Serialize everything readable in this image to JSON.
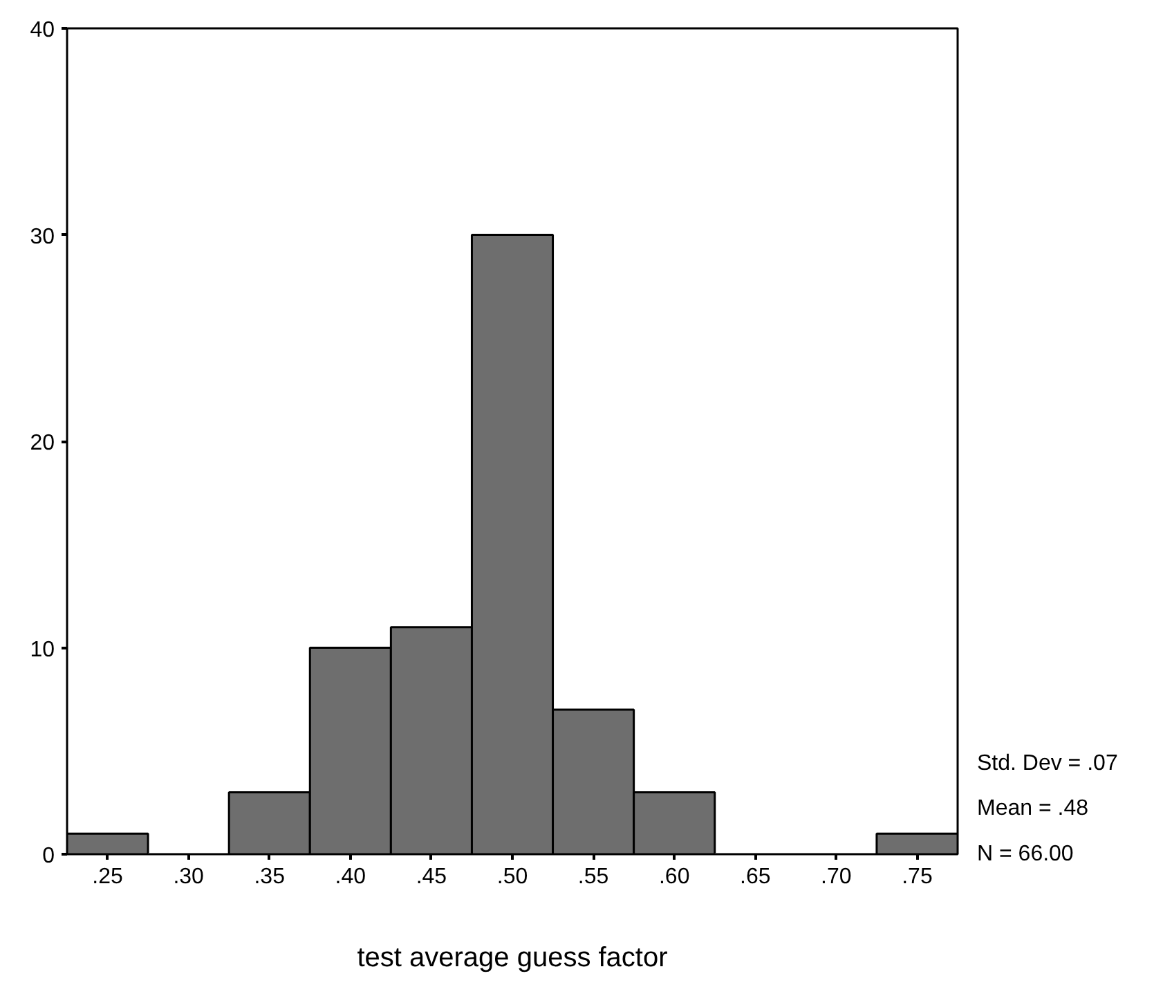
{
  "chart_data": {
    "type": "histogram",
    "xlabel": "test average guess factor",
    "bins": [
      0.225,
      0.275,
      0.325,
      0.375,
      0.425,
      0.475,
      0.525,
      0.575,
      0.625,
      0.675,
      0.725,
      0.775
    ],
    "values": [
      1,
      0,
      3,
      10,
      11,
      30,
      7,
      3,
      0,
      0,
      1
    ],
    "color": "#6e6e6e",
    "xlim": [
      0.225,
      0.775
    ],
    "xticks": [
      {
        "value": 0.25,
        "label": ".25"
      },
      {
        "value": 0.3,
        "label": ".30"
      },
      {
        "value": 0.35,
        "label": ".35"
      },
      {
        "value": 0.4,
        "label": ".40"
      },
      {
        "value": 0.45,
        "label": ".45"
      },
      {
        "value": 0.5,
        "label": ".50"
      },
      {
        "value": 0.55,
        "label": ".55"
      },
      {
        "value": 0.6,
        "label": ".60"
      },
      {
        "value": 0.65,
        "label": ".65"
      },
      {
        "value": 0.7,
        "label": ".70"
      },
      {
        "value": 0.75,
        "label": ".75"
      }
    ],
    "ylim": [
      0,
      40
    ],
    "yticks": [
      0,
      10,
      20,
      30,
      40
    ],
    "grid": false,
    "annotations": [
      "Std. Dev = .07",
      "Mean = .48",
      "N = 66.00"
    ]
  }
}
